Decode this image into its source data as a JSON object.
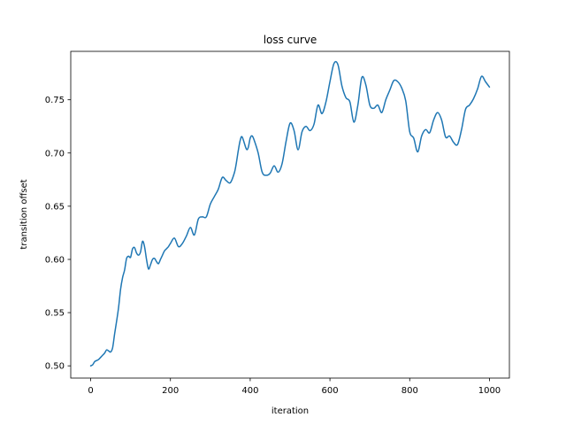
{
  "chart_data": {
    "type": "line",
    "title": "loss curve",
    "xlabel": "iteration",
    "ylabel": "transition offset",
    "xlim": [
      -50,
      1050
    ],
    "ylim": [
      0.4885,
      0.7955
    ],
    "xticks": [
      0,
      200,
      400,
      600,
      800,
      1000
    ],
    "xtick_labels": [
      "0",
      "200",
      "400",
      "600",
      "800",
      "1000"
    ],
    "yticks": [
      0.5,
      0.55,
      0.6,
      0.65,
      0.7,
      0.75
    ],
    "ytick_labels": [
      "0.50",
      "0.55",
      "0.60",
      "0.65",
      "0.70",
      "0.75"
    ],
    "grid": false,
    "legend": false,
    "color": "#1f77b4",
    "series": [
      {
        "x": [
          0,
          5,
          10,
          15,
          20,
          25,
          30,
          35,
          40,
          45,
          50,
          55,
          60,
          65,
          70,
          75,
          80,
          85,
          90,
          95,
          100,
          105,
          110,
          115,
          120,
          125,
          130,
          135,
          140,
          145,
          150,
          155,
          160,
          165,
          170,
          175,
          180,
          185,
          190,
          195,
          200,
          210,
          220,
          230,
          240,
          250,
          260,
          270,
          280,
          290,
          300,
          310,
          320,
          330,
          340,
          350,
          360,
          365,
          370,
          375,
          380,
          390,
          395,
          400,
          405,
          410,
          420,
          430,
          440,
          450,
          460,
          470,
          480,
          490,
          500,
          510,
          520,
          530,
          540,
          550,
          560,
          570,
          580,
          590,
          600,
          610,
          620,
          630,
          640,
          650,
          660,
          670,
          680,
          690,
          700,
          710,
          720,
          730,
          740,
          750,
          760,
          770,
          780,
          790,
          800,
          810,
          820,
          830,
          840,
          850,
          860,
          870,
          880,
          890,
          900,
          910,
          920,
          930,
          940,
          950,
          960,
          970,
          980,
          990,
          1000
        ],
        "y": [
          0.5,
          0.501,
          0.504,
          0.505,
          0.506,
          0.508,
          0.51,
          0.512,
          0.515,
          0.514,
          0.513,
          0.517,
          0.53,
          0.542,
          0.555,
          0.572,
          0.583,
          0.59,
          0.601,
          0.603,
          0.602,
          0.61,
          0.611,
          0.606,
          0.604,
          0.607,
          0.617,
          0.612,
          0.6,
          0.591,
          0.595,
          0.6,
          0.601,
          0.598,
          0.596,
          0.6,
          0.604,
          0.608,
          0.61,
          0.612,
          0.615,
          0.62,
          0.612,
          0.615,
          0.622,
          0.63,
          0.623,
          0.638,
          0.64,
          0.64,
          0.652,
          0.659,
          0.666,
          0.677,
          0.674,
          0.672,
          0.681,
          0.69,
          0.702,
          0.712,
          0.715,
          0.704,
          0.705,
          0.714,
          0.716,
          0.712,
          0.7,
          0.682,
          0.679,
          0.681,
          0.688,
          0.682,
          0.69,
          0.711,
          0.728,
          0.721,
          0.703,
          0.72,
          0.725,
          0.721,
          0.727,
          0.745,
          0.737,
          0.748,
          0.767,
          0.784,
          0.783,
          0.763,
          0.752,
          0.748,
          0.729,
          0.745,
          0.771,
          0.764,
          0.745,
          0.742,
          0.745,
          0.738,
          0.75,
          0.759,
          0.768,
          0.767,
          0.761,
          0.749,
          0.72,
          0.714,
          0.701,
          0.716,
          0.722,
          0.719,
          0.731,
          0.738,
          0.731,
          0.715,
          0.716,
          0.71,
          0.708,
          0.722,
          0.741,
          0.745,
          0.751,
          0.76,
          0.772,
          0.767,
          0.762
        ]
      }
    ]
  }
}
